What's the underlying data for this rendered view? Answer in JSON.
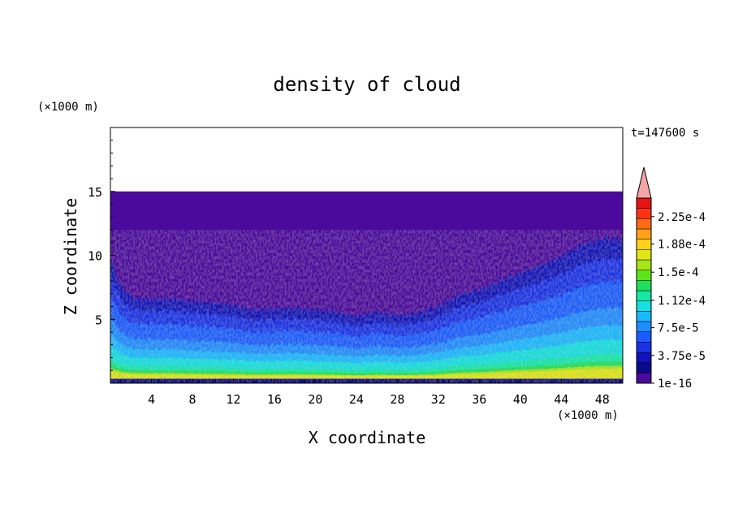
{
  "chart_data": {
    "type": "heatmap",
    "title": "density of cloud",
    "xlabel": "X coordinate",
    "ylabel": "Z coordinate",
    "x_unit": "(×1000 m)",
    "y_unit": "(×1000 m)",
    "time_label": "t=147600 s",
    "xlim": [
      0,
      50
    ],
    "ylim": [
      0,
      20
    ],
    "x_ticks": [
      "4",
      "8",
      "12",
      "16",
      "20",
      "24",
      "28",
      "32",
      "36",
      "40",
      "44",
      "48"
    ],
    "y_ticks": [
      "5",
      "10",
      "15"
    ],
    "data_top_z": 15,
    "colorbar": {
      "min": 1e-16,
      "max": 0.00025,
      "extend": "max",
      "extend_color": "#f4a6a6",
      "labels": [
        "2.25e-4",
        "1.88e-4",
        "1.5e-4",
        "1.12e-4",
        "7.5e-5",
        "3.75e-5",
        "1e-16"
      ],
      "levels": [
        "#4b0a9c",
        "#0b0a8a",
        "#1213b8",
        "#1a32e6",
        "#1a5cff",
        "#1f8cff",
        "#19b8ff",
        "#13e0e0",
        "#14e8a6",
        "#1ee05a",
        "#5ae61a",
        "#a6e614",
        "#e0e614",
        "#ffd21a",
        "#ffa01a",
        "#ff6a14",
        "#ff3212",
        "#e61414"
      ]
    },
    "boundary_profile": {
      "x": [
        0,
        1,
        2,
        3,
        4,
        6,
        8,
        10,
        12,
        14,
        16,
        18,
        20,
        22,
        24,
        26,
        28,
        30,
        32,
        34,
        36,
        38,
        40,
        42,
        44,
        46,
        48,
        50
      ],
      "z": [
        9.8,
        7.6,
        6.8,
        6.6,
        6.6,
        6.6,
        6.4,
        6.3,
        6.1,
        5.7,
        5.8,
        5.9,
        5.7,
        5.6,
        5.2,
        5.6,
        5.3,
        5.5,
        6.0,
        6.9,
        7.3,
        8.0,
        8.6,
        9.2,
        9.9,
        10.8,
        11.3,
        11.3
      ]
    }
  }
}
